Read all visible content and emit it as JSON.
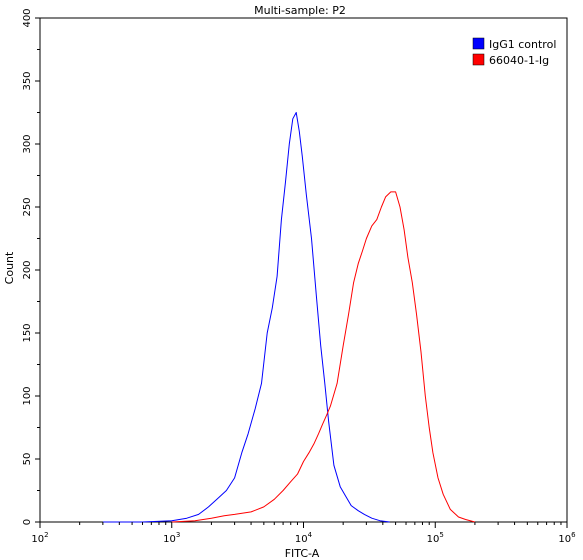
{
  "chart_data": {
    "type": "line",
    "title": "Multi-sample: P2",
    "xlabel": "FITC-A",
    "ylabel": "Count",
    "x_scale": "log",
    "xlim": [
      100,
      1000000
    ],
    "ylim": [
      0,
      400
    ],
    "x_ticks": [
      {
        "value": 100,
        "base": "10",
        "exp": "2"
      },
      {
        "value": 1000,
        "base": "10",
        "exp": "3"
      },
      {
        "value": 10000,
        "base": "10",
        "exp": "4"
      },
      {
        "value": 100000,
        "base": "10",
        "exp": "5"
      },
      {
        "value": 1000000,
        "base": "10",
        "exp": "6"
      }
    ],
    "y_ticks": [
      "0",
      "50",
      "100",
      "150",
      "200",
      "250",
      "300",
      "350",
      "400"
    ],
    "legend_position": "top-right",
    "series": [
      {
        "name": "IgG1 control",
        "color": "#0000ff",
        "points": [
          [
            300,
            0
          ],
          [
            600,
            0
          ],
          [
            1000,
            1
          ],
          [
            1300,
            3
          ],
          [
            1600,
            6
          ],
          [
            1900,
            12
          ],
          [
            2200,
            18
          ],
          [
            2600,
            25
          ],
          [
            3000,
            35
          ],
          [
            3400,
            55
          ],
          [
            3800,
            70
          ],
          [
            4300,
            90
          ],
          [
            4800,
            110
          ],
          [
            5300,
            150
          ],
          [
            5800,
            170
          ],
          [
            6300,
            195
          ],
          [
            6800,
            240
          ],
          [
            7300,
            270
          ],
          [
            7800,
            300
          ],
          [
            8300,
            320
          ],
          [
            8800,
            325
          ],
          [
            9300,
            310
          ],
          [
            9800,
            290
          ],
          [
            10500,
            260
          ],
          [
            11500,
            225
          ],
          [
            12500,
            180
          ],
          [
            13500,
            140
          ],
          [
            14500,
            110
          ],
          [
            15500,
            80
          ],
          [
            17000,
            45
          ],
          [
            19000,
            28
          ],
          [
            21000,
            20
          ],
          [
            23000,
            13
          ],
          [
            26000,
            9
          ],
          [
            29000,
            6
          ],
          [
            33000,
            3
          ],
          [
            38000,
            1
          ],
          [
            45000,
            0
          ]
        ]
      },
      {
        "name": "66040-1-Ig",
        "color": "#ff0000",
        "points": [
          [
            1000,
            0
          ],
          [
            1500,
            1
          ],
          [
            2000,
            3
          ],
          [
            2500,
            5
          ],
          [
            3000,
            6
          ],
          [
            4000,
            8
          ],
          [
            5000,
            12
          ],
          [
            6000,
            18
          ],
          [
            7000,
            25
          ],
          [
            8000,
            32
          ],
          [
            9000,
            38
          ],
          [
            10000,
            48
          ],
          [
            11000,
            55
          ],
          [
            12000,
            62
          ],
          [
            13000,
            70
          ],
          [
            14000,
            78
          ],
          [
            15000,
            85
          ],
          [
            16000,
            92
          ],
          [
            18000,
            110
          ],
          [
            20000,
            140
          ],
          [
            22000,
            165
          ],
          [
            24000,
            190
          ],
          [
            26000,
            205
          ],
          [
            28000,
            215
          ],
          [
            30000,
            225
          ],
          [
            33000,
            235
          ],
          [
            36000,
            240
          ],
          [
            39000,
            250
          ],
          [
            42000,
            258
          ],
          [
            46000,
            262
          ],
          [
            50000,
            262
          ],
          [
            54000,
            250
          ],
          [
            58000,
            232
          ],
          [
            62000,
            210
          ],
          [
            67000,
            190
          ],
          [
            72000,
            165
          ],
          [
            78000,
            135
          ],
          [
            84000,
            100
          ],
          [
            90000,
            75
          ],
          [
            96000,
            55
          ],
          [
            105000,
            35
          ],
          [
            115000,
            22
          ],
          [
            130000,
            10
          ],
          [
            150000,
            4
          ],
          [
            170000,
            2
          ],
          [
            200000,
            0
          ]
        ]
      }
    ]
  }
}
